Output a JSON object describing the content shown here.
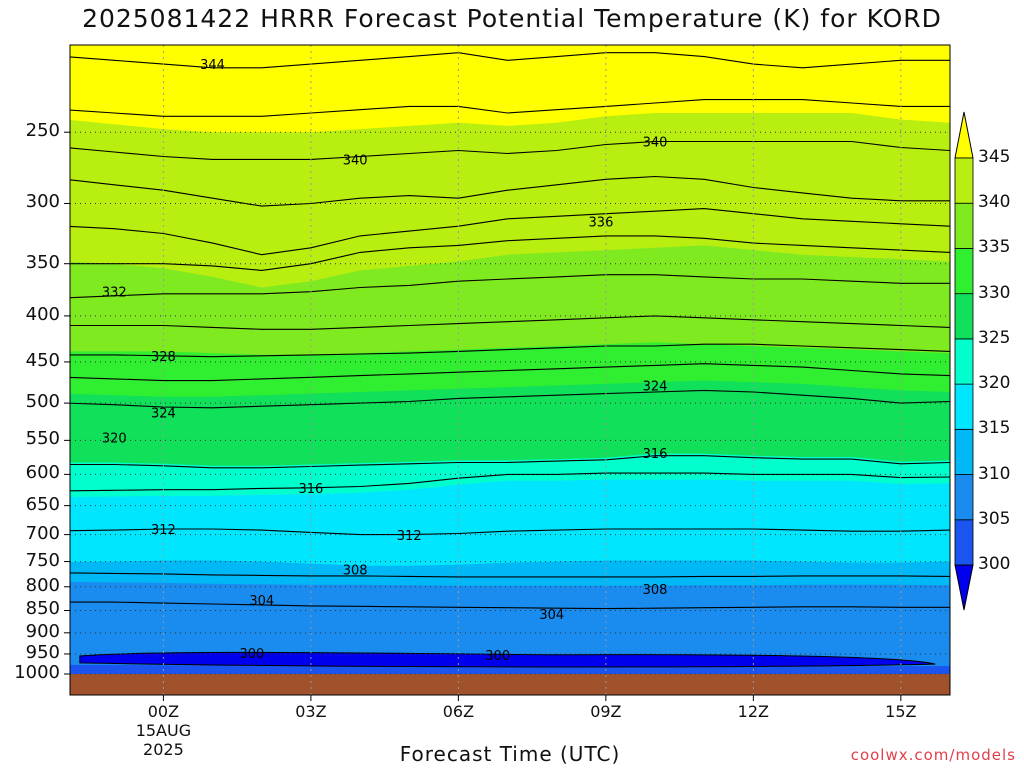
{
  "chart_data": {
    "type": "heatmap",
    "title": "2025081422 HRRR Forecast Potential Temperature (K) for KORD",
    "xlabel": "Forecast Time (UTC)",
    "ylabel": "",
    "credit": "coolwx.com/models",
    "y_axis": {
      "scale": "pressure (inverted, log-like)",
      "ylim": [
        1000,
        200
      ],
      "ticks": [
        {
          "value": 250,
          "label": "250"
        },
        {
          "value": 300,
          "label": "300"
        },
        {
          "value": 350,
          "label": "350"
        },
        {
          "value": 400,
          "label": "400"
        },
        {
          "value": 450,
          "label": "450"
        },
        {
          "value": 500,
          "label": "500"
        },
        {
          "value": 550,
          "label": "550"
        },
        {
          "value": 600,
          "label": "600"
        },
        {
          "value": 650,
          "label": "650"
        },
        {
          "value": 700,
          "label": "700"
        },
        {
          "value": 750,
          "label": "750"
        },
        {
          "value": 800,
          "label": "800"
        },
        {
          "value": 850,
          "label": "850"
        },
        {
          "value": 900,
          "label": "900"
        },
        {
          "value": 950,
          "label": "950"
        },
        {
          "value": 1000,
          "label": "1000"
        }
      ]
    },
    "x_axis": {
      "xlim_hours": [
        -1.9,
        16
      ],
      "ticks": [
        {
          "hour": 0,
          "label": "00Z",
          "sub1": "15AUG",
          "sub2": "2025"
        },
        {
          "hour": 3,
          "label": "03Z",
          "sub1": "",
          "sub2": ""
        },
        {
          "hour": 6,
          "label": "06Z",
          "sub1": "",
          "sub2": ""
        },
        {
          "hour": 9,
          "label": "09Z",
          "sub1": "",
          "sub2": ""
        },
        {
          "hour": 12,
          "label": "12Z",
          "sub1": "",
          "sub2": ""
        },
        {
          "hour": 15,
          "label": "15Z",
          "sub1": "",
          "sub2": ""
        }
      ]
    },
    "grid": true,
    "colorbar": {
      "placement": "right",
      "levels": [
        300,
        305,
        310,
        315,
        320,
        325,
        330,
        335,
        340,
        345
      ],
      "labels": [
        "300",
        "305",
        "310",
        "315",
        "320",
        "325",
        "330",
        "335",
        "340",
        "345"
      ],
      "colors": [
        "#0000ee",
        "#1a55f0",
        "#1a8cf0",
        "#00b8f5",
        "#00e6ff",
        "#00ffcc",
        "#10e05a",
        "#30ee30",
        "#80ea20",
        "#b8ee10",
        "#ffff00"
      ]
    },
    "contours": [
      {
        "label": "300",
        "label_hours": [
          1.8,
          6.8
        ],
        "label_pressures": [
          948,
          952
        ]
      },
      {
        "label": "304",
        "label_hours": [
          2.0,
          7.9
        ],
        "label_pressures": [
          828,
          858
        ]
      },
      {
        "label": "308",
        "label_hours": [
          3.9,
          10.0
        ],
        "label_pressures": [
          765,
          805
        ]
      },
      {
        "label": "312",
        "label_hours": [
          0.0,
          5.0
        ],
        "label_pressures": [
          690,
          701
        ]
      },
      {
        "label": "316",
        "label_hours": [
          3.0,
          10.0
        ],
        "label_pressures": [
          621,
          568
        ]
      },
      {
        "label": "320",
        "label_hours": [
          -1.0
        ],
        "label_pressures": [
          546
        ]
      },
      {
        "label": "324",
        "label_hours": [
          0.0,
          10.0
        ],
        "label_pressures": [
          512,
          478
        ]
      },
      {
        "label": "328",
        "label_hours": [
          0.0
        ],
        "label_pressures": [
          443
        ]
      },
      {
        "label": "332",
        "label_hours": [
          -1.0
        ],
        "label_pressures": [
          376
        ]
      },
      {
        "label": "336",
        "label_hours": [
          8.9
        ],
        "label_pressures": [
          314
        ]
      },
      {
        "label": "340",
        "label_hours": [
          3.9,
          10.0
        ],
        "label_pressures": [
          268,
          256
        ]
      },
      {
        "label": "344",
        "label_hours": [
          1.0
        ],
        "label_pressures": [
          210
        ]
      }
    ],
    "ground": {
      "pressure": 1000,
      "color": "#a0522d"
    }
  }
}
